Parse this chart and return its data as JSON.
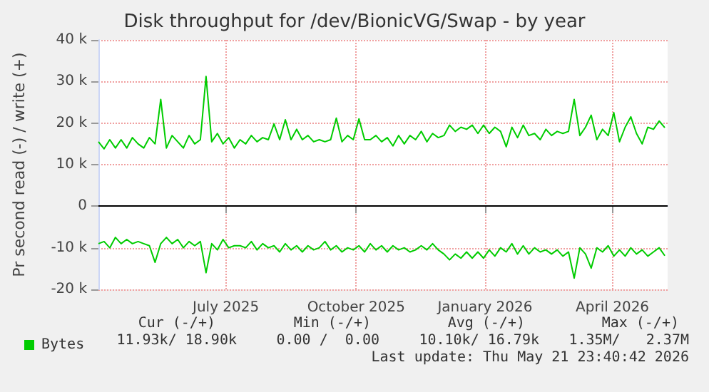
{
  "chart_data": {
    "type": "line",
    "title": "Disk throughput for /dev/BionicVG/Swap - by year",
    "ylabel": "Pr second read (-) / write (+)",
    "x": [
      "2025-04-17",
      "2025-04-21",
      "2025-04-25",
      "2025-04-29",
      "2025-05-03",
      "2025-05-07",
      "2025-05-11",
      "2025-05-15",
      "2025-05-19",
      "2025-05-23",
      "2025-05-27",
      "2025-05-31",
      "2025-06-04",
      "2025-06-08",
      "2025-06-12",
      "2025-06-16",
      "2025-06-20",
      "2025-06-24",
      "2025-06-28",
      "2025-07-02",
      "2025-07-06",
      "2025-07-10",
      "2025-07-14",
      "2025-07-18",
      "2025-07-22",
      "2025-07-26",
      "2025-07-30",
      "2025-08-03",
      "2025-08-07",
      "2025-08-11",
      "2025-08-15",
      "2025-08-19",
      "2025-08-23",
      "2025-08-27",
      "2025-08-31",
      "2025-09-04",
      "2025-09-08",
      "2025-09-12",
      "2025-09-16",
      "2025-09-20",
      "2025-09-24",
      "2025-09-28",
      "2025-10-02",
      "2025-10-06",
      "2025-10-10",
      "2025-10-14",
      "2025-10-18",
      "2025-10-22",
      "2025-10-26",
      "2025-10-30",
      "2025-11-03",
      "2025-11-07",
      "2025-11-11",
      "2025-11-15",
      "2025-11-19",
      "2025-11-23",
      "2025-11-27",
      "2025-12-01",
      "2025-12-05",
      "2025-12-09",
      "2025-12-13",
      "2025-12-17",
      "2025-12-21",
      "2025-12-25",
      "2025-12-29",
      "2026-01-02",
      "2026-01-06",
      "2026-01-10",
      "2026-01-14",
      "2026-01-18",
      "2026-01-22",
      "2026-01-26",
      "2026-01-30",
      "2026-02-03",
      "2026-02-07",
      "2026-02-11",
      "2026-02-15",
      "2026-02-19",
      "2026-02-23",
      "2026-02-27",
      "2026-03-03",
      "2026-03-07",
      "2026-03-11",
      "2026-03-15",
      "2026-03-19",
      "2026-03-23",
      "2026-03-27",
      "2026-03-31",
      "2026-04-04",
      "2026-04-08",
      "2026-04-12",
      "2026-04-16",
      "2026-04-20",
      "2026-04-24",
      "2026-04-28",
      "2026-05-02",
      "2026-05-06",
      "2026-05-10",
      "2026-05-14",
      "2026-05-18",
      "2026-05-22"
    ],
    "series": [
      {
        "name": "Bytes",
        "color": "#00cc00",
        "values": [
          15500,
          13800,
          16000,
          14000,
          16000,
          14000,
          16500,
          15000,
          14000,
          16500,
          15000,
          25700,
          14000,
          17000,
          15500,
          14000,
          17000,
          15000,
          16000,
          31200,
          15500,
          17500,
          15000,
          16500,
          14000,
          16000,
          15000,
          17000,
          15500,
          16500,
          16000,
          19800,
          16000,
          20800,
          16000,
          18500,
          16000,
          17000,
          15500,
          16000,
          15500,
          16000,
          21200,
          15500,
          17000,
          16000,
          21000,
          16000,
          16000,
          17000,
          15500,
          16500,
          14500,
          17000,
          15000,
          17000,
          16000,
          18000,
          15500,
          17500,
          16500,
          17000,
          19500,
          18000,
          19000,
          18500,
          19500,
          17500,
          19500,
          17500,
          19000,
          18000,
          14300,
          19000,
          16500,
          19500,
          17000,
          17500,
          16000,
          18500,
          17000,
          18000,
          17500,
          18000,
          25700,
          17000,
          19000,
          21900,
          16000,
          18500,
          17000,
          22500,
          15500,
          19000,
          21500,
          17500,
          15000,
          19000,
          18500,
          20500,
          18900
        ]
      },
      {
        "color": "#00cc00",
        "values": [
          -9000,
          -8500,
          -10000,
          -7500,
          -9000,
          -8000,
          -9000,
          -8500,
          -9000,
          -9500,
          -13500,
          -9000,
          -7500,
          -9000,
          -8000,
          -10000,
          -8500,
          -9500,
          -8500,
          -16000,
          -9000,
          -10500,
          -8000,
          -10000,
          -9500,
          -9500,
          -10000,
          -8500,
          -10500,
          -9000,
          -10000,
          -9500,
          -11000,
          -9000,
          -10500,
          -9500,
          -11000,
          -9500,
          -10500,
          -10000,
          -8500,
          -10500,
          -9500,
          -11000,
          -10000,
          -10500,
          -9500,
          -11000,
          -9000,
          -10500,
          -9500,
          -11000,
          -9500,
          -10500,
          -10000,
          -11000,
          -10500,
          -9500,
          -10500,
          -9000,
          -10500,
          -11500,
          -12900,
          -11500,
          -12500,
          -11000,
          -12500,
          -11000,
          -12500,
          -10500,
          -12000,
          -10000,
          -11000,
          -9000,
          -11500,
          -9500,
          -11500,
          -10000,
          -11000,
          -10500,
          -11500,
          -10500,
          -12000,
          -11000,
          -17300,
          -10000,
          -11500,
          -14900,
          -10000,
          -11000,
          -9500,
          -12000,
          -10500,
          -12000,
          -10000,
          -11500,
          -10500,
          -12000,
          -11000,
          -10000,
          -11900
        ]
      }
    ],
    "xlim": [
      "2025-04-17",
      "2026-05-24"
    ],
    "xticks": [
      {
        "value": "2025-07-16",
        "label": "July 2025"
      },
      {
        "value": "2025-10-16",
        "label": "October 2025"
      },
      {
        "value": "2026-01-15",
        "label": "January 2026"
      },
      {
        "value": "2026-04-15",
        "label": "April 2026"
      }
    ],
    "ylim": [
      -20000,
      40000
    ],
    "yticks": [
      {
        "value": -20000,
        "label": "-20 k"
      },
      {
        "value": -10000,
        "label": "-10 k"
      },
      0,
      {
        "value": 10000,
        "label": "10 k"
      },
      {
        "value": 20000,
        "label": "20 k"
      },
      {
        "value": 30000,
        "label": "30 k"
      },
      {
        "value": 40000,
        "label": "40 k"
      }
    ],
    "ref_lines": [
      {
        "axis": "y",
        "value": 0,
        "color": "#000000"
      }
    ],
    "grid": true,
    "legend": "bottom left",
    "marker": "none",
    "line_style": "solid",
    "annotations": [
      "Cur (-/+)",
      "Min (-/+)",
      "Avg (-/+)",
      "Max (-/+)",
      "11.93k/ 18.90k",
      "0.00 /  0.00",
      "10.10k/ 16.79k",
      "1.35M/   2.37M",
      "Last update: Thu May 21 23:40:42 2026"
    ]
  }
}
